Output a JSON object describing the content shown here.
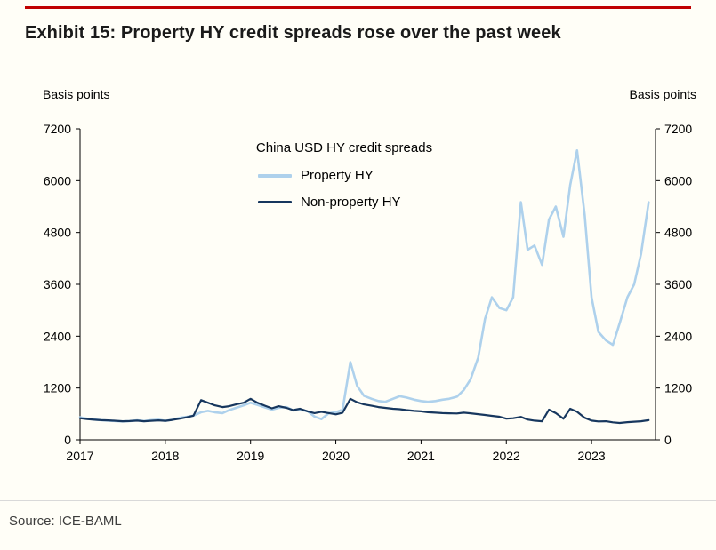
{
  "page": {
    "title": "Exhibit 15: Property HY credit spreads rose over the past week",
    "source": "Source: ICE-BAML",
    "axis_unit_left": "Basis points",
    "axis_unit_right": "Basis points"
  },
  "colors": {
    "accent_red": "#c00000",
    "property_hy_line": "#aed1ec",
    "non_property_hy_line": "#17375e",
    "axis": "#000000",
    "background": "#fffef7"
  },
  "chart_data": {
    "type": "line",
    "title": "China USD HY credit spreads",
    "xlabel": "",
    "ylabel": "Basis points",
    "ylim": [
      0,
      7200
    ],
    "yticks": [
      0,
      1200,
      2400,
      3600,
      4800,
      6000,
      7200
    ],
    "xlim": [
      2017,
      2023.75
    ],
    "xticks": [
      2017,
      2018,
      2019,
      2020,
      2021,
      2022,
      2023
    ],
    "grid": false,
    "legend_position": "top-center-inside",
    "x": [
      2017.0,
      2017.08,
      2017.17,
      2017.25,
      2017.33,
      2017.42,
      2017.5,
      2017.58,
      2017.67,
      2017.75,
      2017.83,
      2017.92,
      2018.0,
      2018.08,
      2018.17,
      2018.25,
      2018.33,
      2018.42,
      2018.5,
      2018.58,
      2018.67,
      2018.75,
      2018.83,
      2018.92,
      2019.0,
      2019.08,
      2019.17,
      2019.25,
      2019.33,
      2019.42,
      2019.5,
      2019.58,
      2019.67,
      2019.75,
      2019.83,
      2019.92,
      2020.0,
      2020.08,
      2020.17,
      2020.25,
      2020.33,
      2020.42,
      2020.5,
      2020.58,
      2020.67,
      2020.75,
      2020.83,
      2020.92,
      2021.0,
      2021.08,
      2021.17,
      2021.25,
      2021.33,
      2021.42,
      2021.5,
      2021.58,
      2021.67,
      2021.75,
      2021.83,
      2021.92,
      2022.0,
      2022.08,
      2022.17,
      2022.25,
      2022.33,
      2022.42,
      2022.5,
      2022.58,
      2022.67,
      2022.75,
      2022.83,
      2022.92,
      2023.0,
      2023.08,
      2023.17,
      2023.25,
      2023.33,
      2023.42,
      2023.5,
      2023.58,
      2023.67
    ],
    "series": [
      {
        "name": "Property HY",
        "color": "#aed1ec",
        "stroke_width": 2.6,
        "values": [
          520,
          490,
          470,
          455,
          445,
          435,
          425,
          435,
          450,
          435,
          455,
          465,
          440,
          465,
          510,
          530,
          560,
          640,
          670,
          640,
          620,
          690,
          740,
          800,
          860,
          810,
          750,
          700,
          740,
          760,
          680,
          700,
          660,
          540,
          480,
          620,
          640,
          700,
          1800,
          1250,
          1020,
          950,
          900,
          880,
          950,
          1010,
          980,
          930,
          900,
          880,
          900,
          930,
          950,
          1000,
          1150,
          1400,
          1900,
          2800,
          3300,
          3050,
          3000,
          3300,
          5500,
          4400,
          4500,
          4050,
          5100,
          5400,
          4700,
          5900,
          6700,
          5200,
          3300,
          2500,
          2300,
          2200,
          2700,
          3300,
          3600,
          4300,
          5500
        ]
      },
      {
        "name": "Non-property HY",
        "color": "#17375e",
        "stroke_width": 2.2,
        "values": [
          500,
          480,
          465,
          455,
          450,
          440,
          430,
          435,
          445,
          430,
          440,
          450,
          440,
          460,
          490,
          520,
          560,
          920,
          860,
          800,
          760,
          780,
          820,
          860,
          950,
          860,
          790,
          730,
          780,
          740,
          690,
          720,
          660,
          620,
          650,
          620,
          590,
          630,
          950,
          870,
          820,
          790,
          760,
          740,
          720,
          710,
          690,
          670,
          660,
          640,
          630,
          620,
          615,
          610,
          630,
          615,
          595,
          575,
          555,
          535,
          490,
          500,
          530,
          470,
          445,
          430,
          700,
          620,
          490,
          720,
          650,
          510,
          445,
          425,
          430,
          405,
          390,
          410,
          420,
          430,
          455
        ]
      }
    ]
  }
}
